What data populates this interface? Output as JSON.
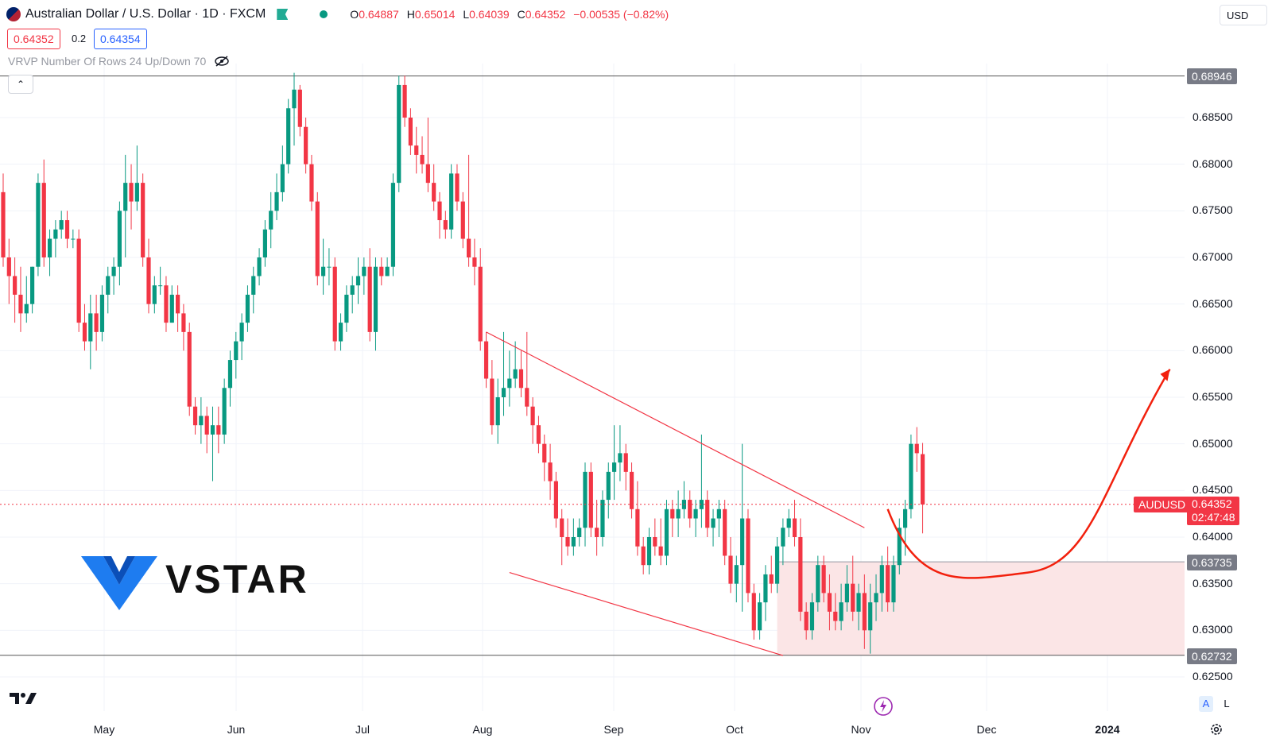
{
  "header": {
    "symbol_title": "Australian Dollar / U.S. Dollar · 1D · FXCM",
    "open_label": "O",
    "open": "0.64887",
    "high_label": "H",
    "high": "0.65014",
    "low_label": "L",
    "low": "0.64039",
    "close_label": "C",
    "close": "0.64352",
    "change": "−0.00535 (−0.82%)",
    "bid": "0.64352",
    "spread": "0.2",
    "ask": "0.64354",
    "indicator": "VRVP Number Of Rows 24 Up/Down 70",
    "currency": "USD",
    "collapse_icon": "chevron-up-icon",
    "flag_icon": "green-flag-icon",
    "visibility_icon": "eye-off-icon"
  },
  "branding": {
    "logo_text": "VSTAR",
    "logo_icon": "vstar-v-icon",
    "tv_logo": "tradingview-17-icon"
  },
  "colors": {
    "up": "#089981",
    "down": "#f23645",
    "lines": "#f23645",
    "zone": "#fbe5e6",
    "level": "#787b86",
    "label_dark": "#787b86"
  },
  "axis": {
    "labels": [
      "0.68500",
      "0.68000",
      "0.67500",
      "0.67000",
      "0.66500",
      "0.66000",
      "0.65500",
      "0.65000",
      "0.64500",
      "0.64000",
      "0.63500",
      "0.63000",
      "0.62500"
    ],
    "months": [
      "May",
      "Jun",
      "Jul",
      "Aug",
      "Sep",
      "Oct",
      "Nov",
      "Dec",
      "2024"
    ],
    "levels": {
      "top": "0.68946",
      "zone_top": "0.63735",
      "bottom": "0.62732"
    },
    "last": {
      "symbol": "AUDUSD",
      "price": "0.64352",
      "countdown": "02:47:48"
    },
    "scale_buttons": [
      "A",
      "L"
    ],
    "settings_icon": "gear-icon",
    "flash_icon": "lightning-icon"
  },
  "chart_data": {
    "type": "candlestick",
    "y_range": [
      0.622,
      0.6905
    ],
    "candles": [
      [
        0.677,
        0.679,
        0.669,
        0.67
      ],
      [
        0.67,
        0.672,
        0.665,
        0.668
      ],
      [
        0.668,
        0.67,
        0.663,
        0.666
      ],
      [
        0.666,
        0.669,
        0.662,
        0.664
      ],
      [
        0.664,
        0.668,
        0.663,
        0.665
      ],
      [
        0.665,
        0.669,
        0.664,
        0.669
      ],
      [
        0.669,
        0.679,
        0.668,
        0.678
      ],
      [
        0.678,
        0.6805,
        0.669,
        0.67
      ],
      [
        0.67,
        0.673,
        0.668,
        0.672
      ],
      [
        0.672,
        0.674,
        0.67,
        0.673
      ],
      [
        0.673,
        0.675,
        0.672,
        0.674
      ],
      [
        0.674,
        0.675,
        0.671,
        0.672
      ],
      [
        0.672,
        0.673,
        0.671,
        0.672
      ],
      [
        0.672,
        0.673,
        0.662,
        0.663
      ],
      [
        0.663,
        0.665,
        0.66,
        0.661
      ],
      [
        0.661,
        0.666,
        0.658,
        0.664
      ],
      [
        0.664,
        0.666,
        0.66,
        0.662
      ],
      [
        0.662,
        0.667,
        0.661,
        0.666
      ],
      [
        0.666,
        0.669,
        0.664,
        0.668
      ],
      [
        0.668,
        0.67,
        0.666,
        0.669
      ],
      [
        0.669,
        0.676,
        0.667,
        0.675
      ],
      [
        0.675,
        0.681,
        0.67,
        0.678
      ],
      [
        0.678,
        0.68,
        0.673,
        0.676
      ],
      [
        0.676,
        0.682,
        0.675,
        0.678
      ],
      [
        0.678,
        0.679,
        0.669,
        0.67
      ],
      [
        0.67,
        0.672,
        0.664,
        0.665
      ],
      [
        0.665,
        0.668,
        0.664,
        0.667
      ],
      [
        0.667,
        0.669,
        0.666,
        0.667
      ],
      [
        0.667,
        0.668,
        0.662,
        0.663
      ],
      [
        0.663,
        0.667,
        0.663,
        0.666
      ],
      [
        0.666,
        0.667,
        0.662,
        0.664
      ],
      [
        0.664,
        0.665,
        0.66,
        0.662
      ],
      [
        0.662,
        0.663,
        0.653,
        0.654
      ],
      [
        0.654,
        0.655,
        0.651,
        0.652
      ],
      [
        0.652,
        0.655,
        0.65,
        0.653
      ],
      [
        0.653,
        0.654,
        0.649,
        0.651
      ],
      [
        0.651,
        0.654,
        0.646,
        0.652
      ],
      [
        0.652,
        0.654,
        0.649,
        0.651
      ],
      [
        0.651,
        0.657,
        0.65,
        0.656
      ],
      [
        0.656,
        0.66,
        0.654,
        0.659
      ],
      [
        0.659,
        0.662,
        0.657,
        0.661
      ],
      [
        0.661,
        0.664,
        0.659,
        0.663
      ],
      [
        0.663,
        0.667,
        0.662,
        0.666
      ],
      [
        0.666,
        0.669,
        0.664,
        0.668
      ],
      [
        0.668,
        0.671,
        0.667,
        0.67
      ],
      [
        0.67,
        0.674,
        0.669,
        0.673
      ],
      [
        0.673,
        0.677,
        0.671,
        0.675
      ],
      [
        0.675,
        0.679,
        0.674,
        0.677
      ],
      [
        0.677,
        0.682,
        0.676,
        0.68
      ],
      [
        0.68,
        0.687,
        0.679,
        0.686
      ],
      [
        0.686,
        0.6898,
        0.682,
        0.688
      ],
      [
        0.688,
        0.6885,
        0.683,
        0.684
      ],
      [
        0.684,
        0.685,
        0.679,
        0.68
      ],
      [
        0.68,
        0.681,
        0.675,
        0.676
      ],
      [
        0.676,
        0.677,
        0.667,
        0.668
      ],
      [
        0.668,
        0.672,
        0.666,
        0.669
      ],
      [
        0.669,
        0.671,
        0.667,
        0.669
      ],
      [
        0.669,
        0.67,
        0.66,
        0.661
      ],
      [
        0.661,
        0.664,
        0.66,
        0.663
      ],
      [
        0.663,
        0.667,
        0.662,
        0.666
      ],
      [
        0.666,
        0.668,
        0.664,
        0.667
      ],
      [
        0.667,
        0.67,
        0.665,
        0.668
      ],
      [
        0.668,
        0.67,
        0.666,
        0.669
      ],
      [
        0.669,
        0.671,
        0.661,
        0.662
      ],
      [
        0.662,
        0.67,
        0.66,
        0.669
      ],
      [
        0.669,
        0.67,
        0.667,
        0.668
      ],
      [
        0.668,
        0.67,
        0.668,
        0.669
      ],
      [
        0.669,
        0.679,
        0.668,
        0.678
      ],
      [
        0.678,
        0.6895,
        0.677,
        0.6885
      ],
      [
        0.6885,
        0.6895,
        0.684,
        0.685
      ],
      [
        0.685,
        0.686,
        0.681,
        0.682
      ],
      [
        0.682,
        0.684,
        0.679,
        0.681
      ],
      [
        0.681,
        0.683,
        0.679,
        0.68
      ],
      [
        0.68,
        0.685,
        0.677,
        0.678
      ],
      [
        0.678,
        0.68,
        0.675,
        0.676
      ],
      [
        0.676,
        0.677,
        0.672,
        0.674
      ],
      [
        0.674,
        0.675,
        0.672,
        0.673
      ],
      [
        0.673,
        0.68,
        0.672,
        0.679
      ],
      [
        0.679,
        0.68,
        0.675,
        0.676
      ],
      [
        0.676,
        0.677,
        0.671,
        0.672
      ],
      [
        0.672,
        0.681,
        0.669,
        0.67
      ],
      [
        0.67,
        0.672,
        0.667,
        0.669
      ],
      [
        0.669,
        0.671,
        0.66,
        0.661
      ],
      [
        0.661,
        0.662,
        0.656,
        0.657
      ],
      [
        0.657,
        0.659,
        0.651,
        0.652
      ],
      [
        0.652,
        0.657,
        0.65,
        0.655
      ],
      [
        0.655,
        0.662,
        0.653,
        0.656
      ],
      [
        0.656,
        0.66,
        0.654,
        0.657
      ],
      [
        0.657,
        0.661,
        0.656,
        0.658
      ],
      [
        0.658,
        0.66,
        0.655,
        0.656
      ],
      [
        0.656,
        0.662,
        0.653,
        0.654
      ],
      [
        0.654,
        0.655,
        0.65,
        0.652
      ],
      [
        0.652,
        0.653,
        0.649,
        0.65
      ],
      [
        0.65,
        0.651,
        0.646,
        0.648
      ],
      [
        0.648,
        0.65,
        0.644,
        0.646
      ],
      [
        0.646,
        0.647,
        0.641,
        0.642
      ],
      [
        0.642,
        0.643,
        0.637,
        0.64
      ],
      [
        0.64,
        0.642,
        0.638,
        0.639
      ],
      [
        0.639,
        0.642,
        0.638,
        0.64
      ],
      [
        0.64,
        0.642,
        0.639,
        0.641
      ],
      [
        0.641,
        0.648,
        0.639,
        0.647
      ],
      [
        0.647,
        0.648,
        0.64,
        0.641
      ],
      [
        0.641,
        0.644,
        0.638,
        0.64
      ],
      [
        0.64,
        0.645,
        0.639,
        0.644
      ],
      [
        0.644,
        0.648,
        0.642,
        0.647
      ],
      [
        0.647,
        0.652,
        0.644,
        0.648
      ],
      [
        0.648,
        0.652,
        0.646,
        0.649
      ],
      [
        0.649,
        0.65,
        0.645,
        0.647
      ],
      [
        0.647,
        0.648,
        0.642,
        0.643
      ],
      [
        0.643,
        0.646,
        0.638,
        0.639
      ],
      [
        0.639,
        0.64,
        0.636,
        0.637
      ],
      [
        0.637,
        0.641,
        0.636,
        0.64
      ],
      [
        0.64,
        0.642,
        0.638,
        0.639
      ],
      [
        0.639,
        0.642,
        0.637,
        0.638
      ],
      [
        0.638,
        0.644,
        0.637,
        0.643
      ],
      [
        0.643,
        0.644,
        0.64,
        0.642
      ],
      [
        0.642,
        0.645,
        0.64,
        0.643
      ],
      [
        0.643,
        0.646,
        0.642,
        0.644
      ],
      [
        0.644,
        0.645,
        0.641,
        0.642
      ],
      [
        0.642,
        0.644,
        0.64,
        0.643
      ],
      [
        0.643,
        0.651,
        0.641,
        0.644
      ],
      [
        0.644,
        0.645,
        0.64,
        0.641
      ],
      [
        0.641,
        0.643,
        0.639,
        0.642
      ],
      [
        0.642,
        0.644,
        0.64,
        0.643
      ],
      [
        0.643,
        0.644,
        0.637,
        0.638
      ],
      [
        0.638,
        0.64,
        0.634,
        0.635
      ],
      [
        0.635,
        0.638,
        0.633,
        0.637
      ],
      [
        0.637,
        0.65,
        0.632,
        0.642
      ],
      [
        0.642,
        0.643,
        0.633,
        0.634
      ],
      [
        0.634,
        0.635,
        0.629,
        0.63
      ],
      [
        0.63,
        0.634,
        0.629,
        0.633
      ],
      [
        0.633,
        0.637,
        0.631,
        0.636
      ],
      [
        0.636,
        0.638,
        0.634,
        0.635
      ],
      [
        0.635,
        0.64,
        0.634,
        0.639
      ],
      [
        0.639,
        0.642,
        0.637,
        0.641
      ],
      [
        0.641,
        0.643,
        0.64,
        0.642
      ],
      [
        0.642,
        0.644,
        0.639,
        0.64
      ],
      [
        0.64,
        0.642,
        0.631,
        0.632
      ],
      [
        0.632,
        0.633,
        0.629,
        0.63
      ],
      [
        0.63,
        0.634,
        0.629,
        0.633
      ],
      [
        0.633,
        0.638,
        0.632,
        0.637
      ],
      [
        0.637,
        0.638,
        0.633,
        0.634
      ],
      [
        0.634,
        0.636,
        0.63,
        0.632
      ],
      [
        0.632,
        0.634,
        0.63,
        0.631
      ],
      [
        0.631,
        0.635,
        0.63,
        0.633
      ],
      [
        0.633,
        0.637,
        0.632,
        0.635
      ],
      [
        0.635,
        0.638,
        0.631,
        0.632
      ],
      [
        0.632,
        0.635,
        0.63,
        0.634
      ],
      [
        0.634,
        0.636,
        0.628,
        0.63
      ],
      [
        0.63,
        0.635,
        0.6275,
        0.633
      ],
      [
        0.633,
        0.636,
        0.631,
        0.634
      ],
      [
        0.634,
        0.638,
        0.632,
        0.637
      ],
      [
        0.637,
        0.639,
        0.632,
        0.633
      ],
      [
        0.633,
        0.638,
        0.632,
        0.637
      ],
      [
        0.637,
        0.642,
        0.636,
        0.641
      ],
      [
        0.641,
        0.644,
        0.638,
        0.643
      ],
      [
        0.643,
        0.651,
        0.642,
        0.65
      ],
      [
        0.65,
        0.6518,
        0.647,
        0.649
      ],
      [
        0.6489,
        0.6501,
        0.6404,
        0.6435
      ]
    ],
    "trendlines": [
      {
        "name": "upper",
        "from": {
          "i": 83,
          "p": 0.662
        },
        "to": {
          "i": 148,
          "p": 0.641
        }
      },
      {
        "name": "lower",
        "from": {
          "i": 87,
          "p": 0.6362
        },
        "to": {
          "i": 134,
          "p": 0.6273
        }
      }
    ],
    "levels": [
      0.68946,
      0.63735,
      0.62732
    ],
    "zone": {
      "from_i": 133,
      "to_p_top": 0.63735,
      "to_p_bottom": 0.62732
    },
    "projection": {
      "points": [
        [
          0.643,
          0
        ],
        [
          0.6358,
          45
        ],
        [
          0.6362,
          75
        ],
        [
          0.6457,
          115
        ],
        [
          0.658,
          151
        ]
      ]
    }
  }
}
